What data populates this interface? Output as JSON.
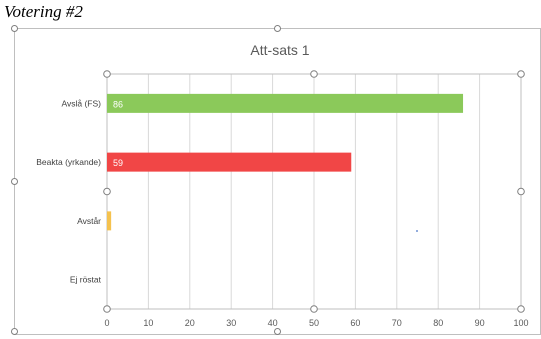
{
  "heading": "Votering #2",
  "chart_data": {
    "type": "bar",
    "orientation": "horizontal",
    "title": "Att-sats 1",
    "categories": [
      "Avslå (FS)",
      "Beakta (yrkande)",
      "Avstår",
      "Ej röstat"
    ],
    "values": [
      86,
      59,
      1,
      0
    ],
    "data_labels": [
      "86",
      "59",
      "",
      ""
    ],
    "colors": [
      "#8bc95a",
      "#f14646",
      "#f5c24e",
      "#bfbfbf"
    ],
    "xlim": [
      0,
      100
    ],
    "xticks": [
      "0",
      "10",
      "20",
      "30",
      "40",
      "50",
      "60",
      "70",
      "80",
      "90",
      "100"
    ],
    "grid": true,
    "legend": "none"
  }
}
